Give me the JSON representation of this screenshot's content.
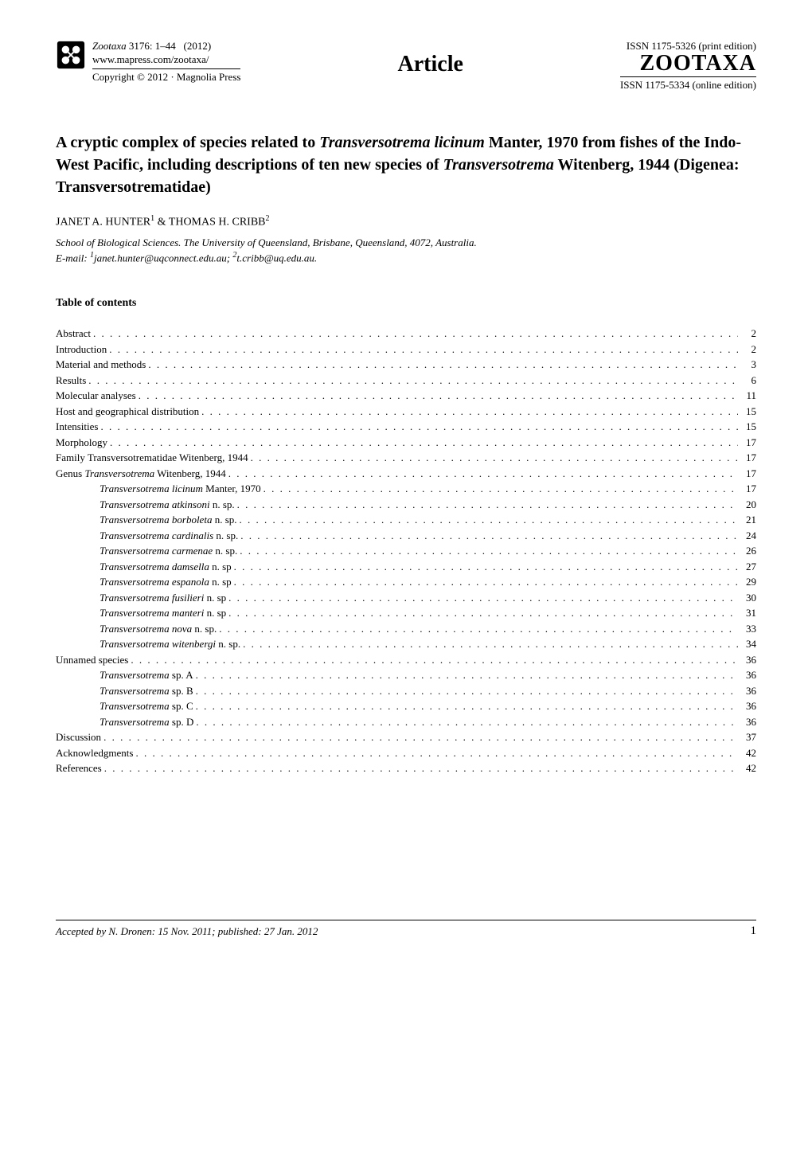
{
  "header": {
    "journal_name": "Zootaxa",
    "issue": "3176: 1–44",
    "year": "(2012)",
    "url": "www.mapress.com/zootaxa/",
    "copyright": "Copyright © 2012  ·  Magnolia Press",
    "article_label": "Article",
    "issn_print": "ISSN 1175-5326  (print edition)",
    "zootaxa_brand": "ZOOTAXA",
    "issn_online": "ISSN 1175-5334 (online edition)"
  },
  "title": {
    "part1": "A cryptic complex of species related to ",
    "italic1": "Transversotrema licinum",
    "part2": " Manter, 1970 from fishes of the Indo-West Pacific, including descriptions of ten new species of ",
    "italic2": "Transversotrema",
    "part3": " Witenberg, 1944 (Digenea: Transversotrematidae)"
  },
  "authors": {
    "author1": "JANET A. HUNTER",
    "sup1": "1",
    "amp": " & ",
    "author2": "THOMAS H. CRIBB",
    "sup2": "2"
  },
  "affiliation": {
    "line1": "School of Biological Sciences. The University of Queensland, Brisbane, Queensland, 4072, Australia.",
    "line2_prefix": "E-mail: ",
    "sup1": "1",
    "email1": "janet.hunter@uqconnect.edu.au; ",
    "sup2": "2",
    "email2": "t.cribb@uq.edu.au."
  },
  "toc_header": "Table of contents",
  "toc": [
    {
      "label": "Abstract",
      "page": "2",
      "indent": false
    },
    {
      "label": "Introduction",
      "page": "2",
      "indent": false
    },
    {
      "label": "Material and methods",
      "page": "3",
      "indent": false
    },
    {
      "label": "Results",
      "page": "6",
      "indent": false
    },
    {
      "label": "Molecular analyses",
      "page": "11",
      "indent": false
    },
    {
      "label": "Host and geographical distribution",
      "page": "15",
      "indent": false
    },
    {
      "label": "Intensities",
      "page": "15",
      "indent": false
    },
    {
      "label": "Morphology",
      "page": "17",
      "indent": false
    },
    {
      "label": "Family Transversotrematidae Witenberg, 1944",
      "page": "17",
      "indent": false
    },
    {
      "label_prefix": "Genus ",
      "label_italic": "Transversotrema",
      "label_suffix": " Witenberg, 1944",
      "page": "17",
      "indent": false
    },
    {
      "label_italic": "Transversotrema licinum",
      "label_suffix": " Manter, 1970",
      "page": "17",
      "indent": true
    },
    {
      "label_italic": "Transversotrema atkinsoni",
      "label_suffix": " n. sp.",
      "page": "20",
      "indent": true
    },
    {
      "label_italic": "Transversotrema borboleta",
      "label_suffix": " n. sp.",
      "page": "21",
      "indent": true
    },
    {
      "label_italic": "Transversotrema cardinalis",
      "label_suffix": " n. sp.",
      "page": "24",
      "indent": true
    },
    {
      "label_italic": "Transversotrema carmenae",
      "label_suffix": " n. sp.",
      "page": "26",
      "indent": true
    },
    {
      "label_italic": "Transversotrema damsella",
      "label_suffix": " n. sp",
      "page": "27",
      "indent": true
    },
    {
      "label_italic": "Transversotrema espanola",
      "label_suffix": " n. sp",
      "page": "29",
      "indent": true
    },
    {
      "label_italic": "Transversotrema fusilieri",
      "label_suffix": " n. sp",
      "page": "30",
      "indent": true
    },
    {
      "label_italic": "Transversotrema manteri",
      "label_suffix": " n. sp",
      "page": "31",
      "indent": true
    },
    {
      "label_italic": "Transversotrema nova",
      "label_suffix": " n. sp.",
      "page": "33",
      "indent": true
    },
    {
      "label_italic": "Transversotrema witenbergi",
      "label_suffix": " n. sp.",
      "page": "34",
      "indent": true
    },
    {
      "label": "Unnamed species",
      "page": "36",
      "indent": false
    },
    {
      "label_italic": "Transversotrema",
      "label_suffix": " sp. A",
      "page": "36",
      "indent": true
    },
    {
      "label_italic": "Transversotrema",
      "label_suffix": " sp. B",
      "page": "36",
      "indent": true
    },
    {
      "label_italic": "Transversotrema",
      "label_suffix": " sp. C",
      "page": "36",
      "indent": true
    },
    {
      "label_italic": "Transversotrema",
      "label_suffix": " sp. D",
      "page": "36",
      "indent": true
    },
    {
      "label": "Discussion",
      "page": "37",
      "indent": false
    },
    {
      "label": "Acknowledgments",
      "page": "42",
      "indent": false
    },
    {
      "label": "References",
      "page": "42",
      "indent": false
    }
  ],
  "footer": {
    "accepted": "Accepted by N. Dronen: 15 Nov. 2011; published: 27 Jan. 2012",
    "page_number": "1"
  }
}
